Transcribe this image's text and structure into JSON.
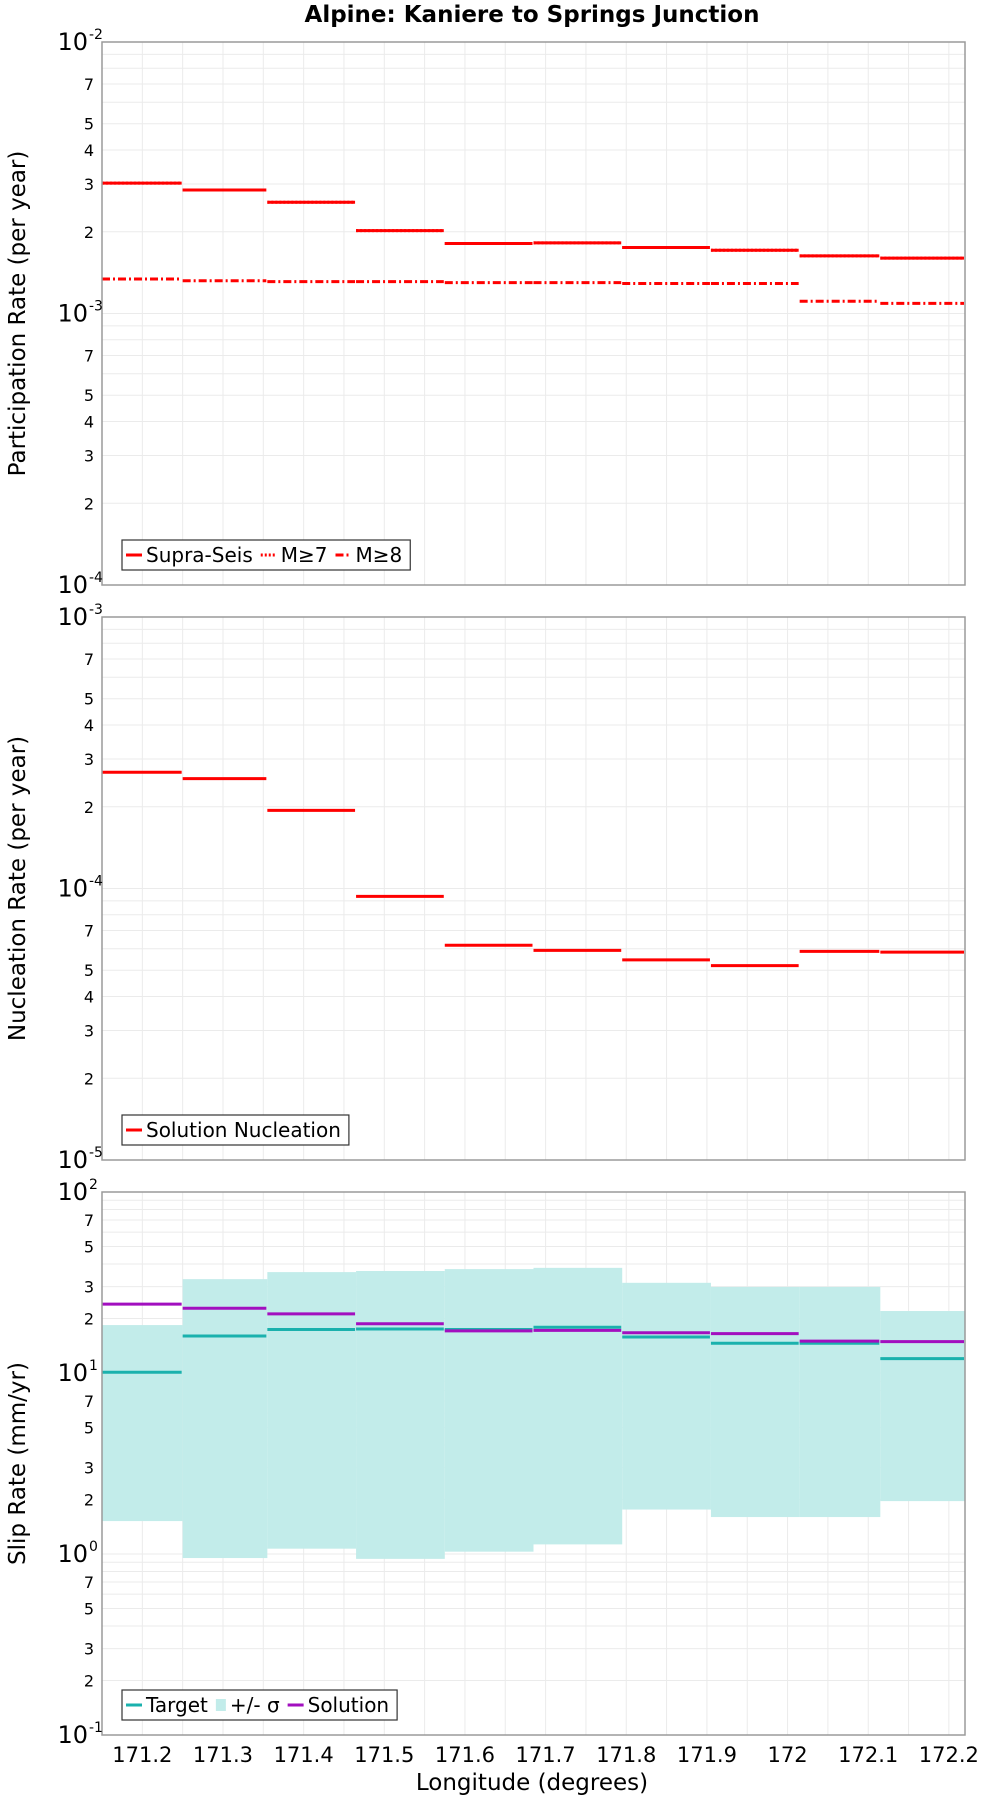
{
  "chart_data": {
    "type": "line",
    "title": "Alpine: Kaniere to Springs Junction",
    "xlabel": "Longitude (degrees)",
    "xlim": [
      171.15,
      172.22
    ],
    "xticks": [
      "171.2",
      "171.3",
      "171.4",
      "171.5",
      "171.6",
      "171.7",
      "171.8",
      "171.9",
      "172",
      "172.1",
      "172.2"
    ],
    "bins": [
      171.15,
      171.25,
      171.355,
      171.465,
      171.575,
      171.685,
      171.795,
      171.905,
      172.015,
      172.115,
      172.22
    ],
    "panels": [
      {
        "name": "participation",
        "ylabel": "Participation Rate (per year)",
        "ylim": [
          0.0001,
          0.01
        ],
        "major_ticks": [
          {
            "base": "10",
            "exp": "-2",
            "value": 0.01
          },
          {
            "base": "10",
            "exp": "-3",
            "value": 0.001
          },
          {
            "base": "10",
            "exp": "-4",
            "value": 0.0001
          }
        ],
        "minor_ticks": [
          {
            "label": "7",
            "value": 0.007
          },
          {
            "label": "5",
            "value": 0.005
          },
          {
            "label": "4",
            "value": 0.004
          },
          {
            "label": "3",
            "value": 0.003
          },
          {
            "label": "2",
            "value": 0.002
          },
          {
            "label": "7",
            "value": 0.0007
          },
          {
            "label": "5",
            "value": 0.0005
          },
          {
            "label": "4",
            "value": 0.0004
          },
          {
            "label": "3",
            "value": 0.0003
          },
          {
            "label": "2",
            "value": 0.0002
          }
        ],
        "series": [
          {
            "name": "Supra-Seis",
            "color": "#ff0000",
            "style": "solid",
            "values": [
              0.00302,
              0.00285,
              0.00257,
              0.00202,
              0.00181,
              0.00182,
              0.00175,
              0.00171,
              0.00163,
              0.0016
            ]
          },
          {
            "name": "M≥7",
            "color": "#ff0000",
            "style": "dotted",
            "values": [
              0.00302,
              0.00285,
              0.00257,
              0.00202,
              0.00181,
              0.00182,
              0.00175,
              0.00171,
              0.00163,
              0.0016
            ]
          },
          {
            "name": "M≥8",
            "color": "#ff0000",
            "style": "dashdot",
            "values": [
              0.00134,
              0.00132,
              0.00131,
              0.00131,
              0.0013,
              0.0013,
              0.00129,
              0.00129,
              0.00111,
              0.00109
            ]
          }
        ]
      },
      {
        "name": "nucleation",
        "ylabel": "Nucleation Rate (per year)",
        "ylim": [
          1e-05,
          0.001
        ],
        "major_ticks": [
          {
            "base": "10",
            "exp": "-3",
            "value": 0.001
          },
          {
            "base": "10",
            "exp": "-4",
            "value": 0.0001
          },
          {
            "base": "10",
            "exp": "-5",
            "value": 1e-05
          }
        ],
        "minor_ticks": [
          {
            "label": "7",
            "value": 0.0007
          },
          {
            "label": "5",
            "value": 0.0005
          },
          {
            "label": "4",
            "value": 0.0004
          },
          {
            "label": "3",
            "value": 0.0003
          },
          {
            "label": "2",
            "value": 0.0002
          },
          {
            "label": "7",
            "value": 7e-05
          },
          {
            "label": "5",
            "value": 5e-05
          },
          {
            "label": "4",
            "value": 4e-05
          },
          {
            "label": "3",
            "value": 3e-05
          },
          {
            "label": "2",
            "value": 2e-05
          }
        ],
        "series": [
          {
            "name": "Solution Nucleation",
            "color": "#ff0000",
            "style": "solid",
            "values": [
              0.000268,
              0.000254,
              0.000194,
              9.35e-05,
              6.18e-05,
              5.92e-05,
              5.46e-05,
              5.2e-05,
              5.87e-05,
              5.83e-05
            ]
          }
        ]
      },
      {
        "name": "slip",
        "ylabel": "Slip Rate (mm/yr)",
        "ylim": [
          0.1,
          100
        ],
        "major_ticks": [
          {
            "base": "10",
            "exp": "2",
            "value": 100
          },
          {
            "base": "10",
            "exp": "1",
            "value": 10
          },
          {
            "base": "10",
            "exp": "0",
            "value": 1
          },
          {
            "base": "10",
            "exp": "-1",
            "value": 0.1
          }
        ],
        "minor_ticks": [
          {
            "label": "7",
            "value": 70
          },
          {
            "label": "5",
            "value": 50
          },
          {
            "label": "3",
            "value": 30
          },
          {
            "label": "2",
            "value": 20
          },
          {
            "label": "7",
            "value": 7
          },
          {
            "label": "5",
            "value": 5
          },
          {
            "label": "3",
            "value": 3
          },
          {
            "label": "2",
            "value": 2
          },
          {
            "label": "7",
            "value": 0.7
          },
          {
            "label": "5",
            "value": 0.5
          },
          {
            "label": "3",
            "value": 0.3
          },
          {
            "label": "2",
            "value": 0.2
          }
        ],
        "band": {
          "name": "+/- σ",
          "color": "#c2ecea",
          "lower": [
            1.52,
            0.95,
            1.07,
            0.94,
            1.03,
            1.13,
            1.76,
            1.6,
            1.6,
            1.96
          ],
          "upper": [
            18.4,
            33.0,
            36.1,
            36.6,
            37.5,
            38.1,
            31.5,
            29.9,
            29.9,
            22.0
          ]
        },
        "series": [
          {
            "name": "Target",
            "color": "#1ab1ad",
            "style": "solid",
            "values": [
              10.1,
              16.0,
              17.4,
              17.5,
              17.4,
              17.9,
              15.8,
              14.6,
              14.6,
              12.0
            ]
          },
          {
            "name": "Solution",
            "color": "#a20fbf",
            "style": "solid",
            "values": [
              24.0,
              22.8,
              21.2,
              18.7,
              17.1,
              17.2,
              16.7,
              16.5,
              15.0,
              14.9
            ]
          }
        ],
        "legend_order": [
          "Target",
          "+/- σ",
          "Solution"
        ]
      }
    ]
  }
}
